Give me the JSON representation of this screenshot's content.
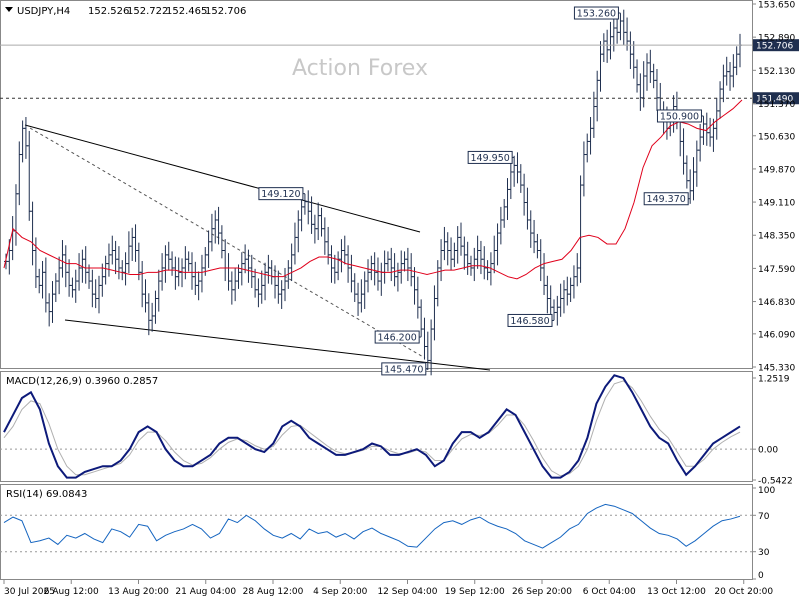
{
  "chart_data": [
    {
      "type": "ohlc",
      "panel": "price",
      "symbol_header": "USDJPY,H4",
      "ohlc_header": [
        "152.526",
        "152.722",
        "152.465",
        "152.706"
      ],
      "watermark": "Action Forex",
      "y_ticks": [
        "153.650",
        "152.890",
        "152.130",
        "151.370",
        "150.630",
        "149.870",
        "149.110",
        "148.350",
        "147.590",
        "146.830",
        "146.090",
        "145.330"
      ],
      "ylim": [
        145.33,
        153.65
      ],
      "bars": [
        147.75,
        148.0,
        148.45,
        149.3,
        150.2,
        150.8,
        150.4,
        148.9,
        148.0,
        147.4,
        147.2,
        147.5,
        146.8,
        146.6,
        147.0,
        147.3,
        147.6,
        147.9,
        147.5,
        147.2,
        147.1,
        147.3,
        147.6,
        147.8,
        147.5,
        147.3,
        147.0,
        146.9,
        147.2,
        147.4,
        147.7,
        147.9,
        148.0,
        147.8,
        147.6,
        147.5,
        147.7,
        148.1,
        148.3,
        148.0,
        147.5,
        147.0,
        146.8,
        146.4,
        146.5,
        146.9,
        147.3,
        147.6,
        147.9,
        147.8,
        147.6,
        147.4,
        147.5,
        147.6,
        147.8,
        147.7,
        147.4,
        147.2,
        147.3,
        147.6,
        147.9,
        148.2,
        148.5,
        148.7,
        148.4,
        148.0,
        147.6,
        147.3,
        147.1,
        147.3,
        147.5,
        147.7,
        147.8,
        147.6,
        147.4,
        147.1,
        147.0,
        147.2,
        147.5,
        147.6,
        147.4,
        147.2,
        147.0,
        147.1,
        147.3,
        147.6,
        147.9,
        148.3,
        148.7,
        149.0,
        149.12,
        148.9,
        148.6,
        148.5,
        148.8,
        148.5,
        148.2,
        147.9,
        147.6,
        147.5,
        147.8,
        148.0,
        147.9,
        147.6,
        147.3,
        147.0,
        146.8,
        147.0,
        147.3,
        147.5,
        147.7,
        147.5,
        147.3,
        147.5,
        147.7,
        147.8,
        147.6,
        147.4,
        147.5,
        147.7,
        147.8,
        147.6,
        147.4,
        147.1,
        146.7,
        146.2,
        145.8,
        145.48,
        146.2,
        146.9,
        147.6,
        148.0,
        148.2,
        148.0,
        147.8,
        148.0,
        148.3,
        148.1,
        147.9,
        147.7,
        147.6,
        147.8,
        148.0,
        147.8,
        147.6,
        147.5,
        147.7,
        148.0,
        148.4,
        148.7,
        149.0,
        149.4,
        149.8,
        149.95,
        149.8,
        149.5,
        149.1,
        148.7,
        148.4,
        148.2,
        148.0,
        147.6,
        147.2,
        146.9,
        146.7,
        146.58,
        146.7,
        146.9,
        147.1,
        147.0,
        147.2,
        147.4,
        147.6,
        149.5,
        150.2,
        150.5,
        150.8,
        151.3,
        151.9,
        152.5,
        152.8,
        152.6,
        152.9,
        153.1,
        153.0,
        153.26,
        153.0,
        152.8,
        152.5,
        152.2,
        151.8,
        151.5,
        152.0,
        152.3,
        152.1,
        151.9,
        151.5,
        151.2,
        151.0,
        150.8,
        151.0,
        151.3,
        151.0,
        150.5,
        150.0,
        149.6,
        149.37,
        149.8,
        150.3,
        150.6,
        150.9,
        150.7,
        150.6,
        150.8,
        151.2,
        151.7,
        152.0,
        152.1,
        152.0,
        152.2,
        152.5,
        152.706
      ],
      "moving_average": [
        147.6,
        148.5,
        148.3,
        148.2,
        148.0,
        147.9,
        147.8,
        147.7,
        147.7,
        147.6,
        147.6,
        147.6,
        147.55,
        147.5,
        147.45,
        147.45,
        147.5,
        147.5,
        147.55,
        147.55,
        147.5,
        147.5,
        147.5,
        147.55,
        147.6,
        147.6,
        147.6,
        147.55,
        147.5,
        147.45,
        147.4,
        147.4,
        147.5,
        147.6,
        147.75,
        147.85,
        147.85,
        147.8,
        147.7,
        147.65,
        147.6,
        147.55,
        147.5,
        147.5,
        147.55,
        147.55,
        147.5,
        147.45,
        147.5,
        147.55,
        147.55,
        147.6,
        147.65,
        147.65,
        147.6,
        147.5,
        147.4,
        147.35,
        147.45,
        147.6,
        147.7,
        147.75,
        147.8,
        148.0,
        148.3,
        148.35,
        148.3,
        148.15,
        148.15,
        148.5,
        149.1,
        149.9,
        150.4,
        150.6,
        150.85,
        150.95,
        150.9,
        150.8,
        150.75,
        150.95,
        151.1,
        151.25,
        151.45
      ],
      "moving_average_start_index": 0,
      "labels": [
        {
          "text": "150.900",
          "value": 150.9
        },
        {
          "text": "149.120",
          "value": 149.12
        },
        {
          "text": "146.200",
          "value": 146.2
        },
        {
          "text": "145.470",
          "value": 145.47
        },
        {
          "text": "149.950",
          "value": 149.95
        },
        {
          "text": "146.580",
          "value": 146.58
        },
        {
          "text": "153.260",
          "value": 153.26
        },
        {
          "text": "149.370",
          "value": 149.37
        }
      ],
      "horizontal_levels": [
        {
          "value": 152.706,
          "label": "152.706",
          "style": "solid"
        },
        {
          "value": 151.49,
          "label": "151.490",
          "style": "dashed"
        }
      ],
      "colors": {
        "bars": "#1f2f4f",
        "moving_average": "#e0001b",
        "level_label_bg": "#1f2f4f"
      }
    },
    {
      "type": "line",
      "panel": "macd",
      "header": "MACD(12,26,9) 0.3960 0.2857",
      "y_ticks": [
        "1.2519",
        "0.00",
        "-0.5422"
      ],
      "ylim": [
        -0.5422,
        1.2519
      ],
      "series": [
        {
          "name": "MACD",
          "color": "#0d1a7a",
          "values": [
            0.3,
            0.6,
            0.9,
            1.0,
            0.7,
            0.1,
            -0.3,
            -0.5,
            -0.5,
            -0.4,
            -0.35,
            -0.3,
            -0.3,
            -0.2,
            0.0,
            0.3,
            0.4,
            0.3,
            0.0,
            -0.2,
            -0.3,
            -0.3,
            -0.2,
            -0.1,
            0.1,
            0.2,
            0.2,
            0.1,
            0.0,
            -0.05,
            0.1,
            0.4,
            0.5,
            0.4,
            0.2,
            0.1,
            0.0,
            -0.1,
            -0.1,
            -0.05,
            0.0,
            0.1,
            0.05,
            -0.1,
            -0.1,
            -0.05,
            0.0,
            -0.1,
            -0.3,
            -0.2,
            0.1,
            0.3,
            0.3,
            0.2,
            0.3,
            0.5,
            0.7,
            0.6,
            0.3,
            0.0,
            -0.3,
            -0.5,
            -0.5,
            -0.4,
            -0.2,
            0.2,
            0.8,
            1.1,
            1.3,
            1.25,
            1.0,
            0.7,
            0.4,
            0.2,
            0.1,
            -0.2,
            -0.45,
            -0.3,
            -0.1,
            0.1,
            0.2,
            0.3,
            0.4
          ]
        },
        {
          "name": "Signal",
          "color": "#b0b0b0",
          "values": [
            0.2,
            0.4,
            0.7,
            0.85,
            0.8,
            0.45,
            0.0,
            -0.3,
            -0.45,
            -0.45,
            -0.4,
            -0.35,
            -0.3,
            -0.25,
            -0.1,
            0.15,
            0.3,
            0.3,
            0.15,
            -0.05,
            -0.2,
            -0.28,
            -0.25,
            -0.15,
            0.0,
            0.12,
            0.18,
            0.15,
            0.06,
            0.0,
            0.05,
            0.25,
            0.4,
            0.42,
            0.3,
            0.18,
            0.06,
            -0.04,
            -0.08,
            -0.06,
            -0.02,
            0.05,
            0.05,
            -0.03,
            -0.08,
            -0.07,
            -0.02,
            -0.05,
            -0.2,
            -0.2,
            0.0,
            0.18,
            0.26,
            0.24,
            0.28,
            0.42,
            0.6,
            0.6,
            0.42,
            0.15,
            -0.15,
            -0.38,
            -0.47,
            -0.43,
            -0.3,
            0.0,
            0.5,
            0.9,
            1.15,
            1.2,
            1.08,
            0.85,
            0.58,
            0.35,
            0.2,
            -0.05,
            -0.3,
            -0.3,
            -0.18,
            0.0,
            0.12,
            0.22,
            0.3
          ]
        }
      ]
    },
    {
      "type": "line",
      "panel": "rsi",
      "header": "RSI(14) 69.0843",
      "y_ticks": [
        "100",
        "70",
        "30",
        "0"
      ],
      "ylim": [
        0,
        100
      ],
      "series": [
        {
          "name": "RSI",
          "color": "#1565c0",
          "values": [
            62,
            68,
            64,
            40,
            42,
            45,
            38,
            48,
            45,
            50,
            44,
            40,
            55,
            52,
            46,
            60,
            58,
            42,
            48,
            52,
            55,
            60,
            55,
            45,
            50,
            66,
            62,
            70,
            64,
            55,
            48,
            45,
            50,
            44,
            55,
            50,
            52,
            46,
            50,
            44,
            52,
            56,
            50,
            46,
            42,
            36,
            35,
            45,
            55,
            62,
            64,
            60,
            65,
            68,
            62,
            58,
            55,
            50,
            42,
            38,
            34,
            40,
            46,
            55,
            60,
            72,
            78,
            82,
            80,
            76,
            72,
            64,
            56,
            50,
            48,
            44,
            36,
            42,
            50,
            58,
            64,
            66,
            69
          ]
        }
      ]
    }
  ],
  "x_axis": {
    "ticks": [
      "30 Jul 2025",
      "6 Aug 12:00",
      "13 Aug 20:00",
      "21 Aug 04:00",
      "28 Aug 12:00",
      "4 Sep 20:00",
      "12 Sep 04:00",
      "19 Sep 12:00",
      "26 Sep 20:00",
      "6 Oct 04:00",
      "13 Oct 12:00",
      "20 Oct 20:00"
    ]
  }
}
